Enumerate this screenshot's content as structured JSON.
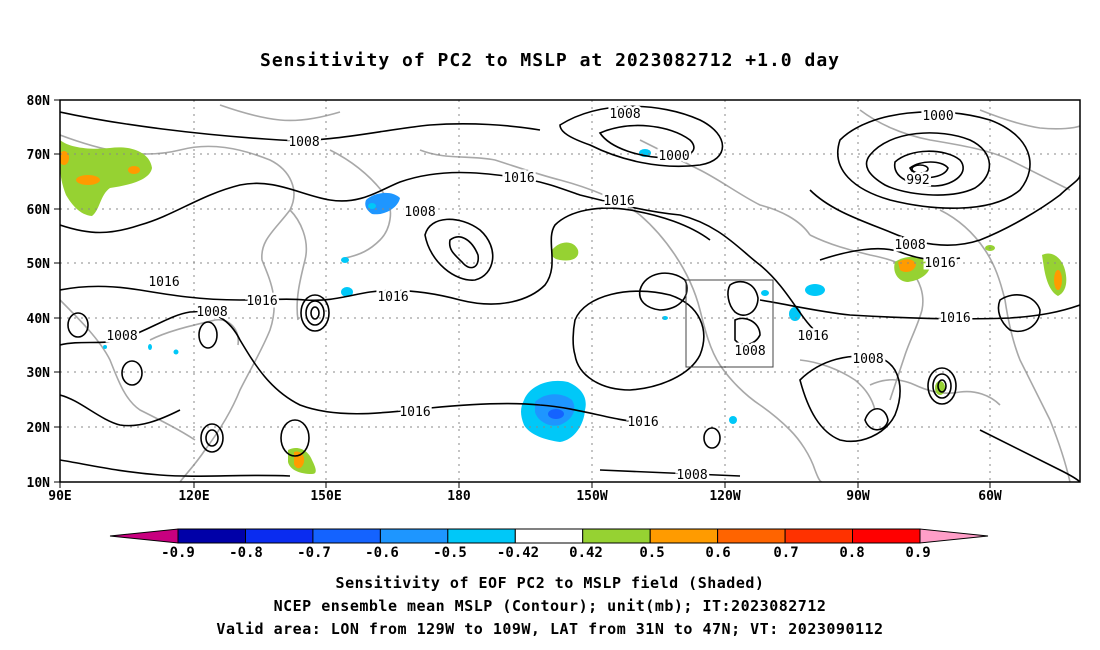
{
  "title": "Sensitivity of PC2 to MSLP at 2023082712 +1.0 day",
  "lat_ticks": [
    "80N",
    "70N",
    "60N",
    "50N",
    "40N",
    "30N",
    "20N",
    "10N"
  ],
  "lon_ticks": [
    "90E",
    "120E",
    "150E",
    "180",
    "150W",
    "120W",
    "90W",
    "60W"
  ],
  "contour_labels": [
    "1008",
    "1008",
    "1016",
    "1016",
    "1008",
    "1000",
    "1000",
    "992",
    "1008",
    "1016",
    "1016",
    "1016",
    "1016",
    "1008",
    "1008",
    "1016",
    "1016",
    "1008",
    "1016",
    "1016",
    "1008",
    "1008"
  ],
  "colorbar": {
    "labels": [
      "-0.9",
      "-0.8",
      "-0.7",
      "-0.6",
      "-0.5",
      "-0.42",
      "0.42",
      "0.5",
      "0.6",
      "0.7",
      "0.8",
      "0.9"
    ],
    "colors": [
      "#0000a8",
      "#0a2cf0",
      "#1463ff",
      "#1e96ff",
      "#00c8f8",
      "#ffffff",
      "#96d232",
      "#ff9b00",
      "#ff6400",
      "#ff3200",
      "#ff0000"
    ],
    "low_color": "#c8007f",
    "high_color": "#ff9ec8"
  },
  "captions": {
    "line1": "Sensitivity of EOF PC2 to MSLP field (Shaded)",
    "line2": "NCEP ensemble mean MSLP (Contour); unit(mb); IT:2023082712",
    "line3": "Valid area: LON from 129W to 109W, LAT from 31N to 47N; VT: 2023090112"
  }
}
